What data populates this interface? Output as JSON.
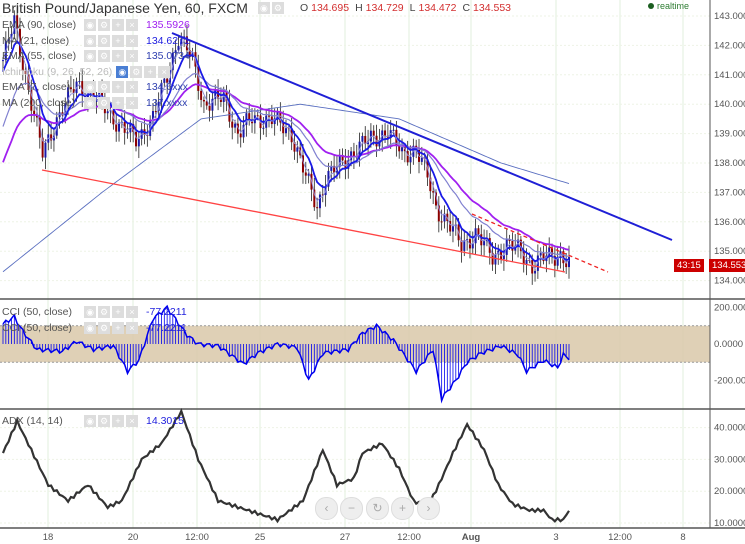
{
  "header": {
    "title": "British Pound/Japanese Yen, 60, FXCM",
    "ohlc": {
      "o_label": "O",
      "o": "134.695",
      "h_label": "H",
      "h": "134.729",
      "l_label": "L",
      "l": "134.472",
      "c_label": "C",
      "c": "134.553"
    },
    "realtime": "realtime"
  },
  "legend": [
    {
      "name": "EMA (90, close)",
      "value": "135.5926",
      "color": "#a020f0"
    },
    {
      "name": "MA (21, close)",
      "value": "134.6271",
      "color": "#2020e0"
    },
    {
      "name": "EMA (55, close)",
      "value": "135.0734",
      "color": "#3040b0"
    },
    {
      "name": "Ichimoku (9, 26, 52, 26)",
      "value": "",
      "color": "#bbbbbb"
    },
    {
      "name": "EMA (7, close)",
      "value": "134.6xxx",
      "color": "#3040b0"
    },
    {
      "name": "MA (200, close)",
      "value": "137.xxxx",
      "color": "#3040b0"
    }
  ],
  "cci_legend": [
    {
      "name": "CCI (50, close)",
      "value": "-77.2211"
    },
    {
      "name": "CCI (50, close)",
      "value": "-77.2211"
    }
  ],
  "adx_legend": {
    "name": "ADX (14, 14)",
    "value": "14.3015"
  },
  "price_tag": "134.553",
  "countdown": "43:15",
  "nav": {
    "left": "‹",
    "minus": "−",
    "reset": "↻",
    "plus": "+",
    "right": "›"
  },
  "colors": {
    "up": "#1a1aa8",
    "down": "#8b0000",
    "trend": "#1f1fd6",
    "support": "#ff4444",
    "cci": "#0000ee",
    "band": "#d9c8a9"
  },
  "chart_data": {
    "type": "line",
    "title": "British Pound/Japanese Yen, 60, FXCM",
    "x_ticks": [
      "18",
      "20",
      "12:00",
      "25",
      "27",
      "12:00",
      "Aug",
      "3",
      "12:00",
      "8"
    ],
    "price_ticks": [
      "143.000",
      "142.000",
      "141.000",
      "140.000",
      "139.000",
      "138.000",
      "137.000",
      "136.000",
      "135.000",
      "134.000"
    ],
    "price_range": [
      133.8,
      143.5
    ],
    "price_path": [
      [
        0,
        141.5
      ],
      [
        4,
        142.8
      ],
      [
        9,
        140.5
      ],
      [
        14,
        138.3
      ],
      [
        19,
        139.5
      ],
      [
        26,
        140.7
      ],
      [
        35,
        140
      ],
      [
        42,
        139.2
      ],
      [
        47,
        138.8
      ],
      [
        53,
        139.5
      ],
      [
        58,
        141
      ],
      [
        62,
        142.3
      ],
      [
        67,
        141.5
      ],
      [
        71,
        140
      ],
      [
        78,
        140.2
      ],
      [
        83,
        139
      ],
      [
        88,
        139.5
      ],
      [
        95,
        139.5
      ],
      [
        102,
        139
      ],
      [
        107,
        137.5
      ],
      [
        111,
        136.5
      ],
      [
        114,
        137.5
      ],
      [
        120,
        138
      ],
      [
        125,
        138.5
      ],
      [
        130,
        138.8
      ],
      [
        136,
        139.1
      ],
      [
        141,
        138.3
      ],
      [
        146,
        138.5
      ],
      [
        150,
        137.5
      ],
      [
        153,
        136.5
      ],
      [
        157,
        136
      ],
      [
        162,
        135.2
      ],
      [
        167,
        135.6
      ],
      [
        173,
        134.8
      ],
      [
        178,
        135.2
      ],
      [
        183,
        135
      ],
      [
        187,
        134.5
      ],
      [
        192,
        134.8
      ],
      [
        197,
        134.9
      ],
      [
        200,
        134.55
      ]
    ],
    "ma200_path": [
      [
        0,
        134.3
      ],
      [
        35,
        137
      ],
      [
        70,
        139.5
      ],
      [
        105,
        140
      ],
      [
        140,
        139.5
      ],
      [
        176,
        138
      ],
      [
        200,
        137.3
      ]
    ],
    "cci_ticks": [
      "200.0000",
      "0.0000",
      "-200.0000"
    ],
    "cci_path": [
      [
        0,
        110
      ],
      [
        4,
        150
      ],
      [
        7,
        70
      ],
      [
        12,
        -30
      ],
      [
        21,
        -40
      ],
      [
        26,
        15
      ],
      [
        32,
        -30
      ],
      [
        39,
        -10
      ],
      [
        44,
        -150
      ],
      [
        48,
        -90
      ],
      [
        53,
        140
      ],
      [
        58,
        200
      ],
      [
        65,
        50
      ],
      [
        69,
        0
      ],
      [
        76,
        -10
      ],
      [
        85,
        -110
      ],
      [
        90,
        -50
      ],
      [
        97,
        0
      ],
      [
        104,
        -20
      ],
      [
        108,
        -200
      ],
      [
        113,
        -50
      ],
      [
        122,
        -30
      ],
      [
        127,
        60
      ],
      [
        132,
        100
      ],
      [
        138,
        20
      ],
      [
        146,
        -150
      ],
      [
        152,
        -30
      ],
      [
        155,
        -300
      ],
      [
        160,
        -200
      ],
      [
        164,
        -100
      ],
      [
        169,
        -50
      ],
      [
        176,
        -10
      ],
      [
        182,
        -60
      ],
      [
        185,
        -150
      ],
      [
        191,
        -90
      ],
      [
        196,
        -130
      ],
      [
        198,
        -60
      ],
      [
        200,
        -77
      ]
    ],
    "adx_ticks": [
      "40.0000",
      "30.0000",
      "20.0000",
      "10.0000"
    ],
    "adx_path": [
      [
        0,
        32
      ],
      [
        5,
        42
      ],
      [
        16,
        22
      ],
      [
        23,
        17
      ],
      [
        30,
        22
      ],
      [
        37,
        15
      ],
      [
        42,
        17
      ],
      [
        49,
        30
      ],
      [
        56,
        35
      ],
      [
        63,
        45
      ],
      [
        69,
        30
      ],
      [
        76,
        17
      ],
      [
        83,
        15
      ],
      [
        90,
        13
      ],
      [
        97,
        11
      ],
      [
        106,
        17
      ],
      [
        113,
        33
      ],
      [
        118,
        22
      ],
      [
        124,
        24
      ],
      [
        127,
        32
      ],
      [
        134,
        35
      ],
      [
        140,
        27
      ],
      [
        145,
        17
      ],
      [
        150,
        15
      ],
      [
        154,
        22
      ],
      [
        159,
        32
      ],
      [
        164,
        41
      ],
      [
        170,
        33
      ],
      [
        175,
        22
      ],
      [
        180,
        16
      ],
      [
        186,
        14
      ],
      [
        191,
        14
      ],
      [
        194,
        11
      ],
      [
        198,
        11
      ],
      [
        200,
        14
      ]
    ]
  }
}
